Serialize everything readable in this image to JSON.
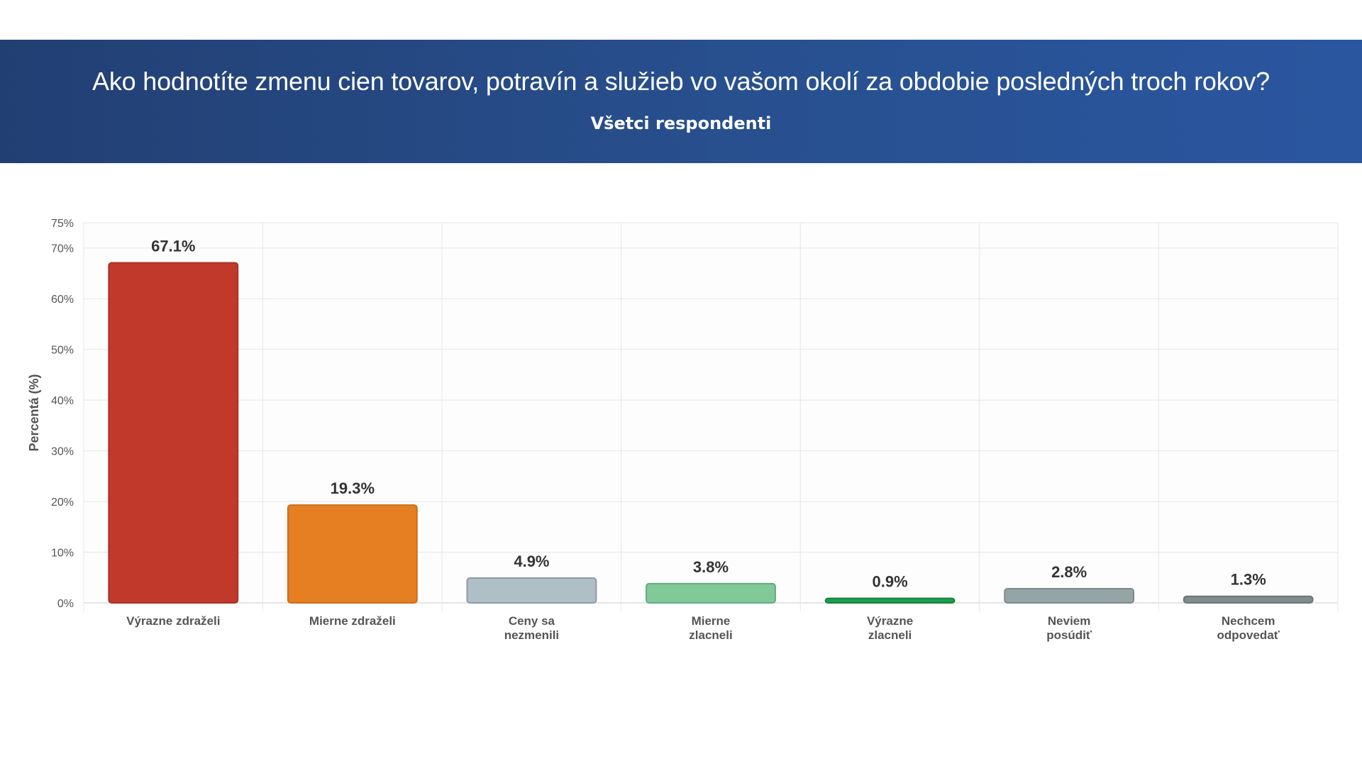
{
  "header": {
    "title": "Ako hodnotíte zmenu cien tovarov, potravín a služieb vo vašom okolí za obdobie posledných troch rokov?",
    "subtitle": "Všetci respondenti",
    "background_color": "#26488a"
  },
  "chart_data": {
    "type": "bar",
    "title": "Ako hodnotíte zmenu cien tovarov, potravín a služieb vo vašom okolí za obdobie posledných troch rokov?",
    "subtitle": "Všetci respondenti",
    "ylabel": "Percentá (%)",
    "xlabel": "",
    "ylim": [
      0,
      75
    ],
    "yticks": [
      0,
      10,
      20,
      30,
      40,
      50,
      60,
      70,
      75
    ],
    "ytick_labels": [
      "0%",
      "10%",
      "20%",
      "30%",
      "40%",
      "50%",
      "60%",
      "70%",
      "75%"
    ],
    "grid": true,
    "categories": [
      [
        "Výrazne zdraželi"
      ],
      [
        "Mierne zdraželi"
      ],
      [
        "Ceny sa",
        "nezmenili"
      ],
      [
        "Mierne",
        "zlacneli"
      ],
      [
        "Výrazne",
        "zlacneli"
      ],
      [
        "Neviem",
        "posúdiť"
      ],
      [
        "Nechcem",
        "odpovedať"
      ]
    ],
    "values": [
      67.1,
      19.3,
      4.9,
      3.8,
      0.9,
      2.8,
      1.3
    ],
    "value_labels": [
      "67.1%",
      "19.3%",
      "4.9%",
      "3.8%",
      "0.9%",
      "2.8%",
      "1.3%"
    ],
    "colors": [
      "#c0392b",
      "#e67e22",
      "#b0bec5",
      "#82c99a",
      "#1e9e4f",
      "#95a5a6",
      "#7f8c8d"
    ],
    "border_colors": [
      "#a93226",
      "#ca6f1e",
      "#8a9ba6",
      "#5fae7b",
      "#15803d",
      "#7b8b8c",
      "#66767a"
    ]
  }
}
